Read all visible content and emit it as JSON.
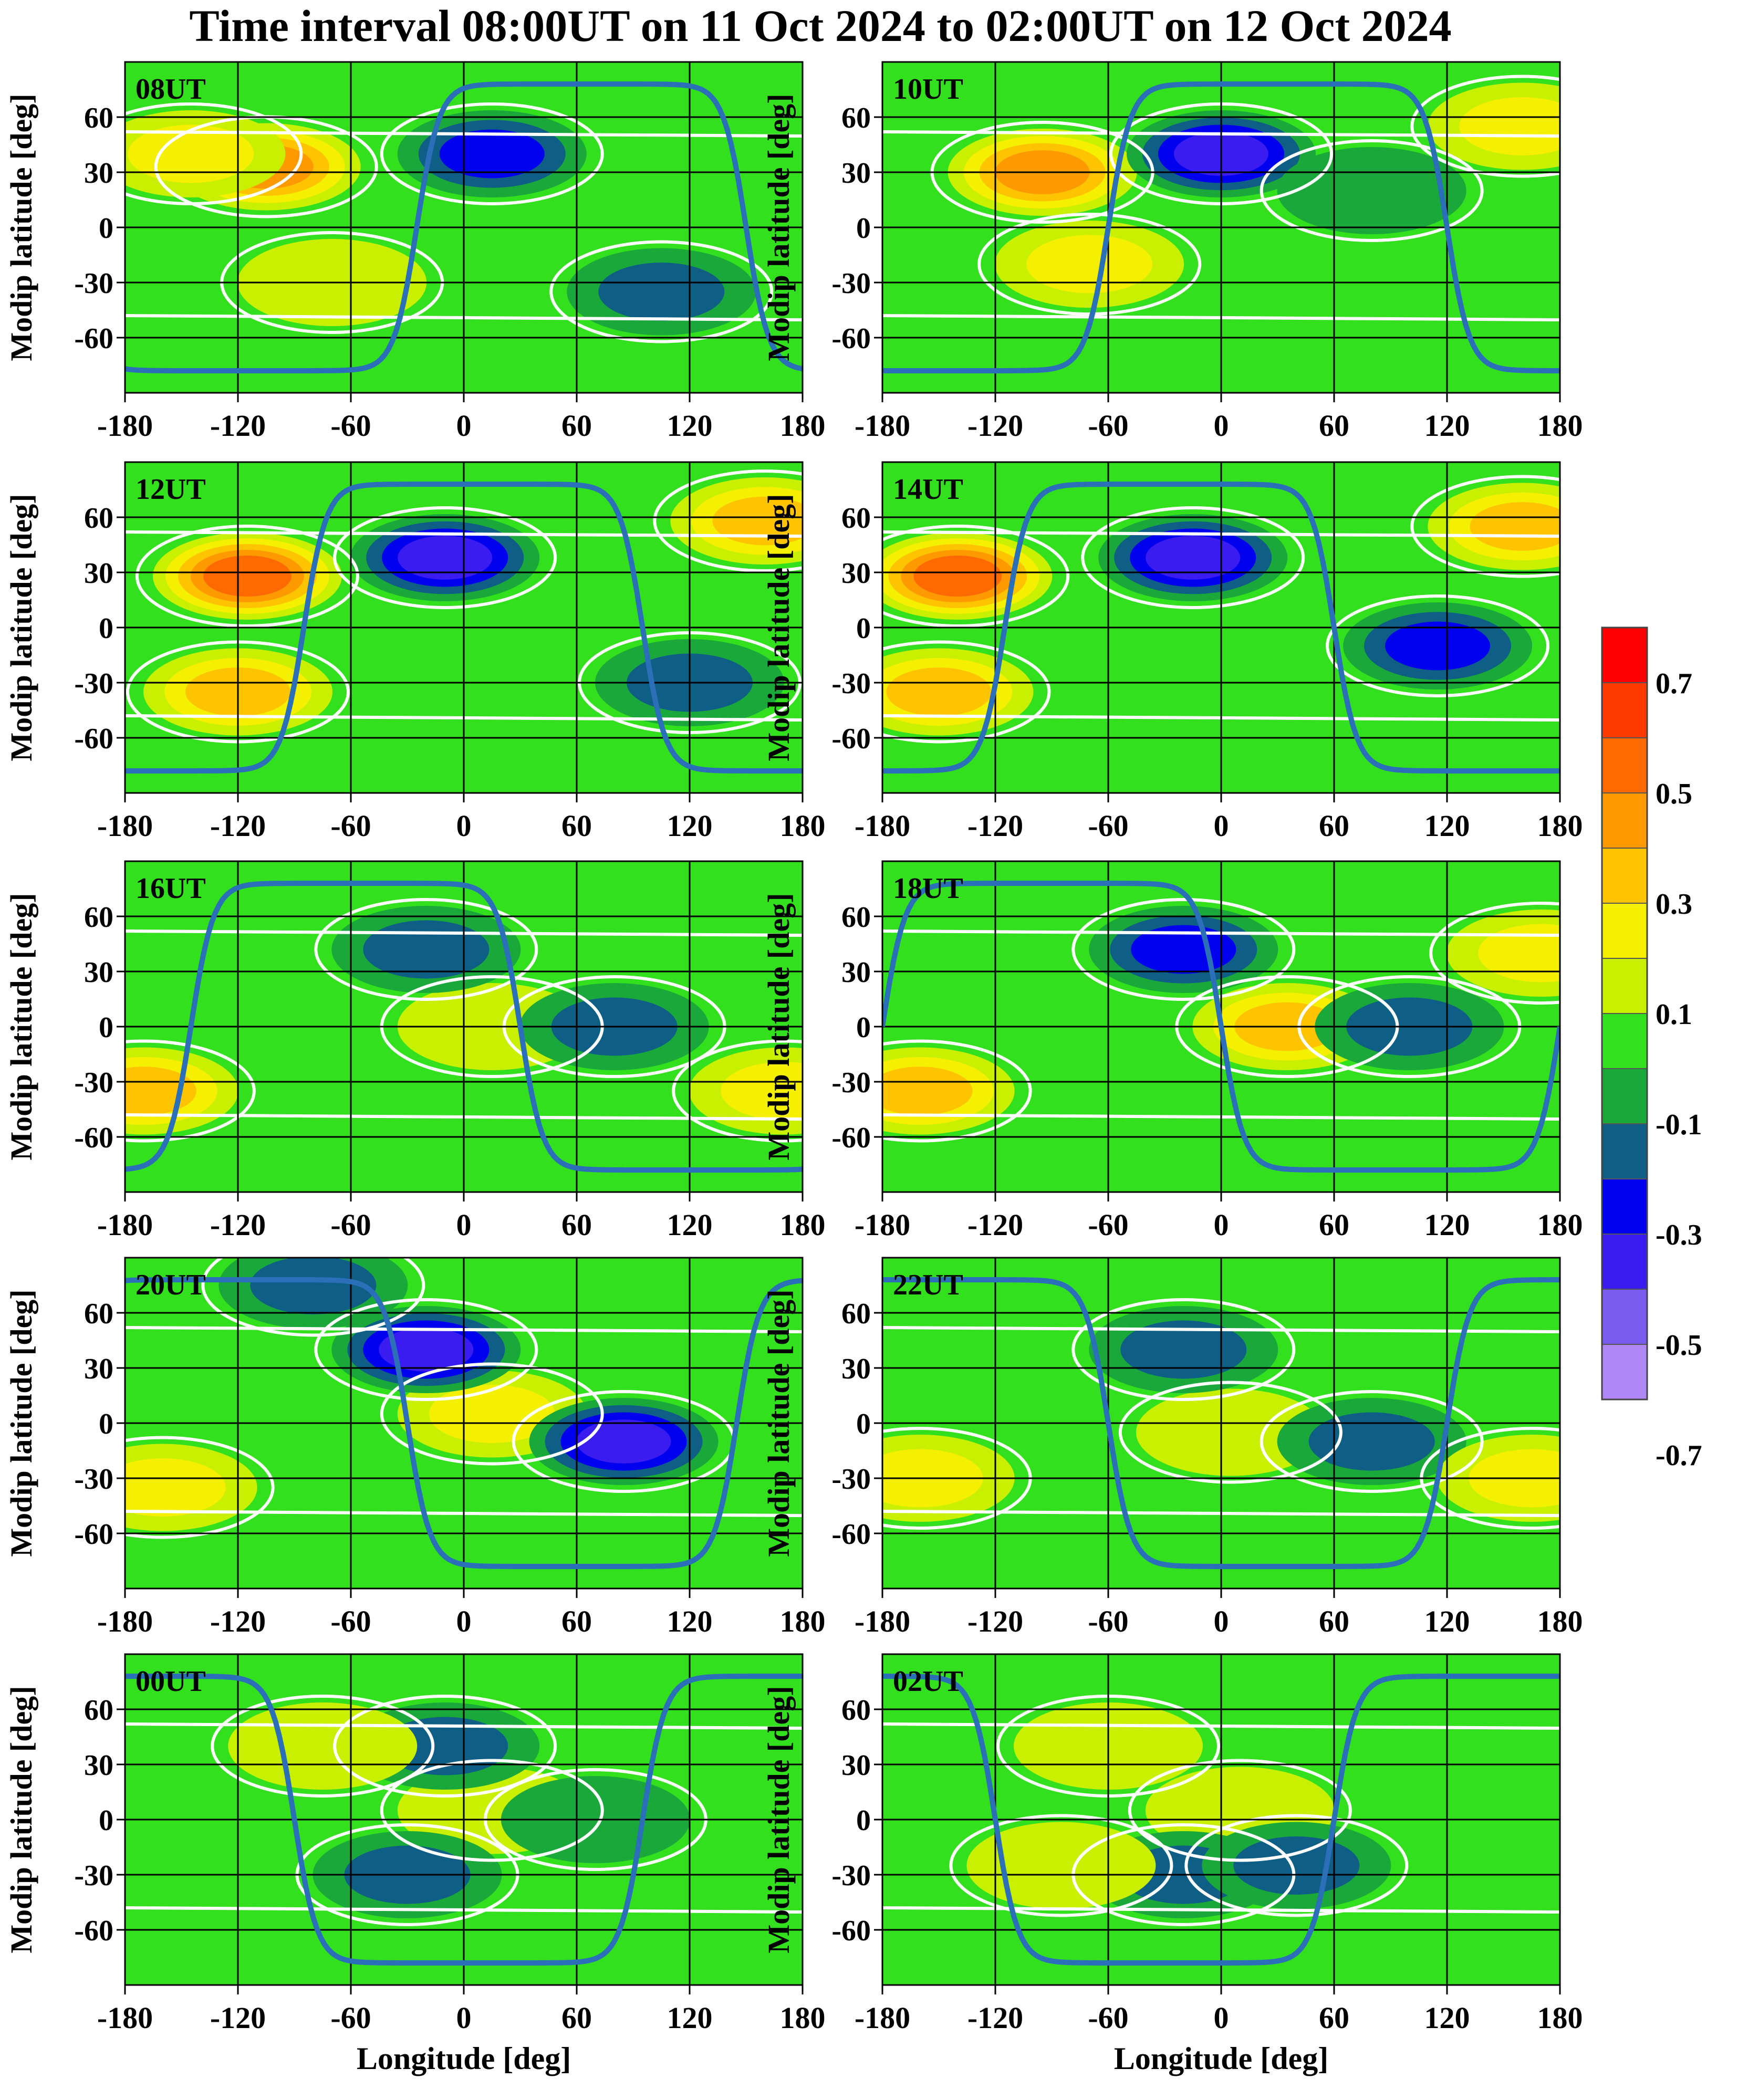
{
  "figure": {
    "title": "Time interval 08:00UT on 11 Oct 2024 to 02:00UT on 12 Oct 2024",
    "ylabel": "Modip latitude [deg]",
    "xlabel": "Longitude [deg]"
  },
  "chart_data": {
    "type": "heatmap",
    "xlim": [
      -180,
      180
    ],
    "ylim": [
      -90,
      90
    ],
    "xticks": [
      "-180",
      "-120",
      "-60",
      "0",
      "60",
      "120",
      "180"
    ],
    "yticks": [
      "60",
      "30",
      "0",
      "-30",
      "-60"
    ],
    "grid": true,
    "overlays": [
      "white contour lines",
      "blue terminator line"
    ],
    "colorbar": {
      "labels": [
        "0.7",
        "0.5",
        "0.3",
        "0.1",
        "-0.1",
        "-0.3",
        "-0.5",
        "-0.7"
      ],
      "bins": [
        {
          "from": 0.7,
          "to": 0.8,
          "color": "#ff0000"
        },
        {
          "from": 0.6,
          "to": 0.7,
          "color": "#ff3a00"
        },
        {
          "from": 0.5,
          "to": 0.6,
          "color": "#ff6a00"
        },
        {
          "from": 0.4,
          "to": 0.5,
          "color": "#ff9900"
        },
        {
          "from": 0.3,
          "to": 0.4,
          "color": "#ffc400"
        },
        {
          "from": 0.2,
          "to": 0.3,
          "color": "#f4f000"
        },
        {
          "from": 0.1,
          "to": 0.2,
          "color": "#c8f000"
        },
        {
          "from": -0.1,
          "to": 0.1,
          "color": "#33e01e"
        },
        {
          "from": -0.2,
          "to": -0.1,
          "color": "#1aa83a"
        },
        {
          "from": -0.3,
          "to": -0.2,
          "color": "#0e5e86"
        },
        {
          "from": -0.4,
          "to": -0.3,
          "color": "#0000ee"
        },
        {
          "from": -0.5,
          "to": -0.4,
          "color": "#3a1cf0"
        },
        {
          "from": -0.6,
          "to": -0.5,
          "color": "#7a5cf0"
        },
        {
          "from": -0.7,
          "to": -0.6,
          "color": "#b088f5"
        }
      ]
    },
    "panels": [
      {
        "label": "08UT",
        "features": [
          {
            "lon": -105,
            "lat": 33,
            "value": 0.45
          },
          {
            "lon": -145,
            "lat": 40,
            "value": 0.25
          },
          {
            "lon": 15,
            "lat": 40,
            "value": -0.4
          },
          {
            "lon": 105,
            "lat": -35,
            "value": -0.3
          },
          {
            "lon": -70,
            "lat": -30,
            "value": 0.2
          }
        ],
        "terminator": {
          "dayside": [
            -25,
            150
          ]
        }
      },
      {
        "label": "10UT",
        "features": [
          {
            "lon": -95,
            "lat": 30,
            "value": 0.5
          },
          {
            "lon": 0,
            "lat": 40,
            "value": -0.45
          },
          {
            "lon": -70,
            "lat": -20,
            "value": 0.25
          },
          {
            "lon": 160,
            "lat": 55,
            "value": 0.3
          },
          {
            "lon": 80,
            "lat": 20,
            "value": -0.15
          }
        ],
        "terminator": {
          "dayside": [
            -60,
            120
          ]
        }
      },
      {
        "label": "12UT",
        "features": [
          {
            "lon": -115,
            "lat": 28,
            "value": 0.55
          },
          {
            "lon": -10,
            "lat": 38,
            "value": -0.45
          },
          {
            "lon": -120,
            "lat": -35,
            "value": 0.35
          },
          {
            "lon": 160,
            "lat": 58,
            "value": 0.35
          },
          {
            "lon": 120,
            "lat": -30,
            "value": -0.3
          }
        ],
        "terminator": {
          "dayside": [
            -85,
            95
          ]
        }
      },
      {
        "label": "14UT",
        "features": [
          {
            "lon": -140,
            "lat": 28,
            "value": 0.55
          },
          {
            "lon": -15,
            "lat": 38,
            "value": -0.45
          },
          {
            "lon": 115,
            "lat": -10,
            "value": -0.4
          },
          {
            "lon": -150,
            "lat": -35,
            "value": 0.35
          },
          {
            "lon": 160,
            "lat": 55,
            "value": 0.35
          }
        ],
        "terminator": {
          "dayside": [
            -115,
            60
          ]
        }
      },
      {
        "label": "16UT",
        "features": [
          {
            "lon": 15,
            "lat": 0,
            "value": 0.22
          },
          {
            "lon": 80,
            "lat": 0,
            "value": -0.3
          },
          {
            "lon": -20,
            "lat": 42,
            "value": -0.3
          },
          {
            "lon": -170,
            "lat": -35,
            "value": 0.35
          },
          {
            "lon": 170,
            "lat": -35,
            "value": 0.3
          }
        ],
        "terminator": {
          "dayside": [
            -145,
            30
          ]
        }
      },
      {
        "label": "18UT",
        "features": [
          {
            "lon": 35,
            "lat": 0,
            "value": 0.35
          },
          {
            "lon": 100,
            "lat": 0,
            "value": -0.3
          },
          {
            "lon": -20,
            "lat": 42,
            "value": -0.4
          },
          {
            "lon": -160,
            "lat": -35,
            "value": 0.35
          },
          {
            "lon": 170,
            "lat": 40,
            "value": 0.3
          }
        ],
        "terminator": {
          "dayside": [
            180,
            0
          ]
        }
      },
      {
        "label": "20UT",
        "features": [
          {
            "lon": 15,
            "lat": 5,
            "value": 0.25
          },
          {
            "lon": 85,
            "lat": -10,
            "value": -0.45
          },
          {
            "lon": -20,
            "lat": 40,
            "value": -0.45
          },
          {
            "lon": -80,
            "lat": 75,
            "value": -0.25
          },
          {
            "lon": -160,
            "lat": -35,
            "value": 0.25
          }
        ],
        "terminator": {
          "dayside": [
            145,
            -30
          ]
        }
      },
      {
        "label": "22UT",
        "features": [
          {
            "lon": 5,
            "lat": -5,
            "value": 0.2
          },
          {
            "lon": 80,
            "lat": -10,
            "value": -0.3
          },
          {
            "lon": -20,
            "lat": 40,
            "value": -0.3
          },
          {
            "lon": -160,
            "lat": -30,
            "value": 0.25
          },
          {
            "lon": 165,
            "lat": -30,
            "value": 0.3
          }
        ],
        "terminator": {
          "dayside": [
            120,
            -60
          ]
        }
      },
      {
        "label": "00UT",
        "features": [
          {
            "lon": 15,
            "lat": 5,
            "value": 0.2
          },
          {
            "lon": -30,
            "lat": -30,
            "value": -0.3
          },
          {
            "lon": -10,
            "lat": 40,
            "value": -0.3
          },
          {
            "lon": -75,
            "lat": 40,
            "value": 0.2
          },
          {
            "lon": 70,
            "lat": 0,
            "value": -0.15
          }
        ],
        "terminator": {
          "dayside": [
            95,
            -90
          ]
        }
      },
      {
        "label": "02UT",
        "features": [
          {
            "lon": 10,
            "lat": 5,
            "value": 0.2
          },
          {
            "lon": -20,
            "lat": -30,
            "value": -0.3
          },
          {
            "lon": -85,
            "lat": -25,
            "value": 0.2
          },
          {
            "lon": -60,
            "lat": 40,
            "value": 0.2
          },
          {
            "lon": 40,
            "lat": -25,
            "value": -0.25
          }
        ],
        "terminator": {
          "dayside": [
            60,
            -120
          ]
        }
      }
    ]
  }
}
